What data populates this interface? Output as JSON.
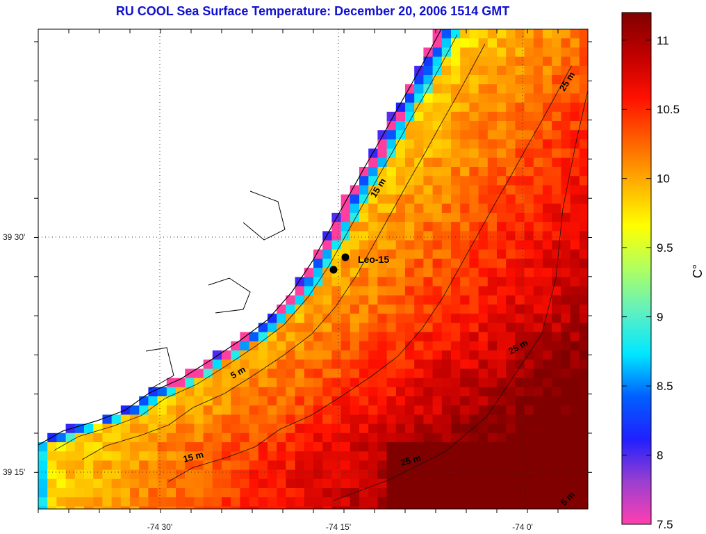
{
  "title": "RU COOL  Sea Surface Temperature:  December 20, 2006 1514 GMT",
  "colorbar": {
    "unit": "C°",
    "min": 7.5,
    "max": 11.2,
    "ticks": [
      "11",
      "10.5",
      "10",
      "9.5",
      "9",
      "8.5",
      "8",
      "7.5"
    ],
    "tick_values": [
      11,
      10.5,
      10,
      9.5,
      9,
      8.5,
      8,
      7.5
    ],
    "colors": [
      "#ff3fb0",
      "#9a3fd0",
      "#2020ff",
      "#0060ff",
      "#00e8ff",
      "#60f0c0",
      "#b0ff60",
      "#ffff00",
      "#ffb000",
      "#ff6000",
      "#ff1000",
      "#c00000",
      "#800000"
    ]
  },
  "axes": {
    "x_ticks": [
      "-74 30'",
      "-74 15'",
      "-74 0'"
    ],
    "y_ticks": [
      "39 30'",
      "39 15'"
    ]
  },
  "isobath_labels": [
    "5 m",
    "15 m",
    "15 m",
    "25 m",
    "25 m",
    "25 m",
    "5 m"
  ],
  "stations": [
    {
      "name": "Leo-15"
    }
  ],
  "land_color": "#ffffff",
  "invalid_color": "#ff3fa0"
}
